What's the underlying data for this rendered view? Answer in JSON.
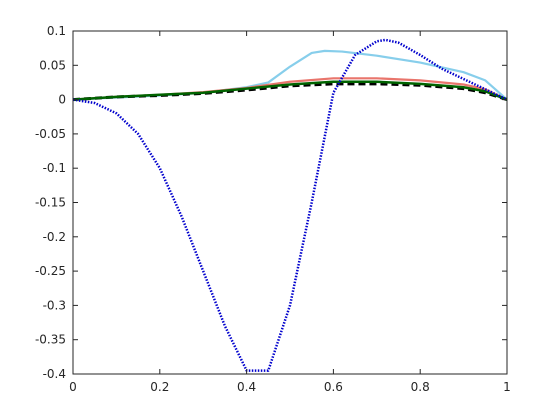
{
  "chart_data": {
    "type": "line",
    "title": "",
    "xlabel": "",
    "ylabel": "",
    "xlim": [
      0,
      1
    ],
    "ylim": [
      -0.4,
      0.1
    ],
    "xticks": [
      0,
      0.2,
      0.4,
      0.6,
      0.8,
      1
    ],
    "xtick_labels": [
      "0",
      "0.2",
      "0.4",
      "0.6",
      "0.8",
      "1"
    ],
    "yticks": [
      0.1,
      0.05,
      0,
      -0.05,
      -0.1,
      -0.15,
      -0.2,
      -0.25,
      -0.3,
      -0.35,
      -0.4
    ],
    "ytick_labels": [
      "0.1",
      "0.05",
      "0",
      "-0.05",
      "-0.1",
      "-0.15",
      "-0.2",
      "-0.25",
      "-0.3",
      "-0.35",
      "-0.4"
    ],
    "grid": false,
    "legend": "none",
    "series": [
      {
        "color": "#87CEEB",
        "style": "solid",
        "x": [
          0,
          0.1,
          0.2,
          0.3,
          0.4,
          0.45,
          0.5,
          0.55,
          0.58,
          0.62,
          0.7,
          0.8,
          0.9,
          0.95,
          1
        ],
        "y": [
          0,
          0.003,
          0.006,
          0.01,
          0.018,
          0.025,
          0.048,
          0.068,
          0.071,
          0.07,
          0.064,
          0.054,
          0.04,
          0.028,
          0
        ]
      },
      {
        "color": "#E9756C",
        "style": "solid",
        "x": [
          0,
          0.1,
          0.2,
          0.3,
          0.4,
          0.5,
          0.6,
          0.7,
          0.8,
          0.9,
          0.95,
          1
        ],
        "y": [
          0,
          0.004,
          0.007,
          0.011,
          0.017,
          0.026,
          0.031,
          0.031,
          0.028,
          0.022,
          0.015,
          0
        ]
      },
      {
        "color": "#000000",
        "style": "dashed",
        "x": [
          0,
          0.1,
          0.2,
          0.3,
          0.4,
          0.5,
          0.6,
          0.7,
          0.8,
          0.9,
          0.95,
          1
        ],
        "y": [
          0,
          0.004,
          0.006,
          0.009,
          0.014,
          0.02,
          0.023,
          0.023,
          0.021,
          0.016,
          0.01,
          0
        ]
      },
      {
        "color": "#006400",
        "style": "solid",
        "x": [
          0,
          0.1,
          0.2,
          0.3,
          0.4,
          0.5,
          0.6,
          0.7,
          0.8,
          0.9,
          0.95,
          1
        ],
        "y": [
          0,
          0.004,
          0.007,
          0.01,
          0.016,
          0.022,
          0.026,
          0.026,
          0.023,
          0.018,
          0.012,
          0
        ]
      },
      {
        "color": "#0000CD",
        "style": "dotted",
        "x": [
          0,
          0.05,
          0.1,
          0.15,
          0.2,
          0.25,
          0.3,
          0.35,
          0.4,
          0.45,
          0.5,
          0.55,
          0.6,
          0.65,
          0.7,
          0.72,
          0.75,
          0.8,
          0.85,
          0.9,
          0.95,
          1
        ],
        "y": [
          0,
          -0.005,
          -0.02,
          -0.05,
          -0.1,
          -0.17,
          -0.25,
          -0.33,
          -0.395,
          -0.395,
          -0.3,
          -0.15,
          0.01,
          0.065,
          0.085,
          0.087,
          0.083,
          0.065,
          0.045,
          0.03,
          0.015,
          0
        ]
      }
    ]
  }
}
